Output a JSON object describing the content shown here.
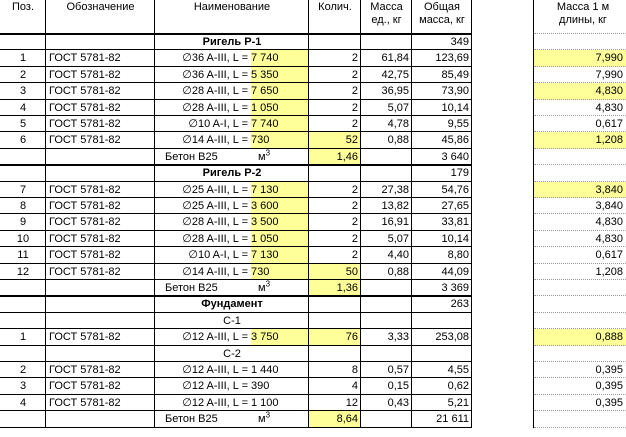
{
  "headers": {
    "pos": "Поз.",
    "designation": "Обозначение",
    "name": "Наименование",
    "qty": "Колич.",
    "unit_mass": "Масса ед., кг",
    "total_mass": "Общая масса, кг",
    "mass_per_m": "Масса 1 м длины, кг"
  },
  "rows": [
    {
      "kind": "section",
      "name": "Ригель Р-1",
      "total": "349"
    },
    {
      "kind": "item",
      "pos": "1",
      "des": "ГОСТ 5781-82",
      "name": "∅36 A-III, L = ",
      "len": "7 740",
      "len_hl": true,
      "qty": "2",
      "unit": "61,84",
      "total": "123,69",
      "per_m": "7,990",
      "per_hl": true
    },
    {
      "kind": "item",
      "pos": "2",
      "des": "ГОСТ 5781-82",
      "name": "∅36 A-III, L = ",
      "len": "5 350",
      "len_hl": true,
      "qty": "2",
      "unit": "42,75",
      "total": "85,49",
      "per_m": "7,990"
    },
    {
      "kind": "item",
      "pos": "3",
      "des": "ГОСТ 5781-82",
      "name": "∅28 A-III, L = ",
      "len": "7 650",
      "len_hl": true,
      "qty": "2",
      "unit": "36,95",
      "total": "73,90",
      "per_m": "4,830",
      "per_hl": true
    },
    {
      "kind": "item",
      "pos": "4",
      "des": "ГОСТ 5781-82",
      "name": "∅28 A-III, L = ",
      "len": "1 050",
      "len_hl": true,
      "qty": "2",
      "unit": "5,07",
      "total": "10,14",
      "per_m": "4,830"
    },
    {
      "kind": "item",
      "pos": "5",
      "des": "ГОСТ 5781-82",
      "name": "∅10 A-I, L = ",
      "len": "7 740",
      "len_hl": true,
      "qty": "2",
      "unit": "4,78",
      "total": "9,55",
      "per_m": "0,617"
    },
    {
      "kind": "item",
      "pos": "6",
      "des": "ГОСТ 5781-82",
      "name": "∅14 A-III, L = ",
      "len": "730",
      "len_hl": true,
      "qty": "52",
      "qty_hl": true,
      "unit": "0,88",
      "total": "45,86",
      "per_m": "1,208",
      "per_hl": true
    },
    {
      "kind": "concrete",
      "name": "Бетон В25",
      "unit_lbl": "м",
      "unit_sup": "3",
      "qty": "1,46",
      "qty_hl": true,
      "total": "3 640"
    },
    {
      "kind": "section",
      "name": "Ригель Р-2",
      "total": "179"
    },
    {
      "kind": "item",
      "pos": "7",
      "des": "ГОСТ 5781-82",
      "name": "∅25 A-III, L = ",
      "len": "7 130",
      "len_hl": true,
      "qty": "2",
      "unit": "27,38",
      "total": "54,76",
      "per_m": "3,840",
      "per_hl": true
    },
    {
      "kind": "item",
      "pos": "8",
      "des": "ГОСТ 5781-82",
      "name": "∅25 A-III, L = ",
      "len": "3 600",
      "len_hl": true,
      "qty": "2",
      "unit": "13,82",
      "total": "27,65",
      "per_m": "3,840"
    },
    {
      "kind": "item",
      "pos": "9",
      "des": "ГОСТ 5781-82",
      "name": "∅28 A-III, L = ",
      "len": "3 500",
      "len_hl": true,
      "qty": "2",
      "unit": "16,91",
      "total": "33,81",
      "per_m": "4,830"
    },
    {
      "kind": "item",
      "pos": "10",
      "des": "ГОСТ 5781-82",
      "name": "∅28 A-III, L = ",
      "len": "1 050",
      "len_hl": true,
      "qty": "2",
      "unit": "5,07",
      "total": "10,14",
      "per_m": "4,830"
    },
    {
      "kind": "item",
      "pos": "11",
      "des": "ГОСТ 5781-82",
      "name": "∅10 A-I, L = ",
      "len": "7 130",
      "len_hl": true,
      "qty": "2",
      "unit": "4,40",
      "total": "8,80",
      "per_m": "0,617"
    },
    {
      "kind": "item",
      "pos": "12",
      "des": "ГОСТ 5781-82",
      "name": "∅14 A-III, L = ",
      "len": "730",
      "len_hl": true,
      "qty": "50",
      "qty_hl": true,
      "unit": "0,88",
      "total": "44,09",
      "per_m": "1,208"
    },
    {
      "kind": "concrete",
      "name": "Бетон В25",
      "unit_lbl": "м",
      "unit_sup": "3",
      "qty": "1,36",
      "qty_hl": true,
      "total": "3 369"
    },
    {
      "kind": "section",
      "name": "Фундамент",
      "total": "263"
    },
    {
      "kind": "sub",
      "name": "С-1"
    },
    {
      "kind": "item",
      "pos": "1",
      "des": "ГОСТ 5781-82",
      "name": "∅12 A-III, L = ",
      "len": "3 750",
      "len_hl": true,
      "qty": "76",
      "qty_hl": true,
      "unit": "3,33",
      "total": "253,08",
      "per_m": "0,888",
      "per_hl": true
    },
    {
      "kind": "sub",
      "name": "С-2"
    },
    {
      "kind": "item",
      "pos": "2",
      "des": "ГОСТ 5781-82",
      "name": "∅12 A-III, L = ",
      "len": "1 440",
      "qty": "8",
      "unit": "0,57",
      "total": "4,55",
      "per_m": "0,395"
    },
    {
      "kind": "item",
      "pos": "3",
      "des": "ГОСТ 5781-82",
      "name": "∅12 A-III, L = ",
      "len": "390",
      "qty": "4",
      "unit": "0,15",
      "total": "0,62",
      "per_m": "0,395"
    },
    {
      "kind": "item",
      "pos": "4",
      "des": "ГОСТ 5781-82",
      "name": "∅12 A-III, L = ",
      "len": "1 100",
      "qty": "12",
      "unit": "0,43",
      "total": "5,21",
      "per_m": "0,395"
    },
    {
      "kind": "concrete",
      "name": "Бетон В25",
      "unit_lbl": "м",
      "unit_sup": "3",
      "qty": "8,64",
      "qty_hl": true,
      "total": "21 611"
    }
  ],
  "colors": {
    "highlight": "#ffff99",
    "grid": "#000000"
  }
}
